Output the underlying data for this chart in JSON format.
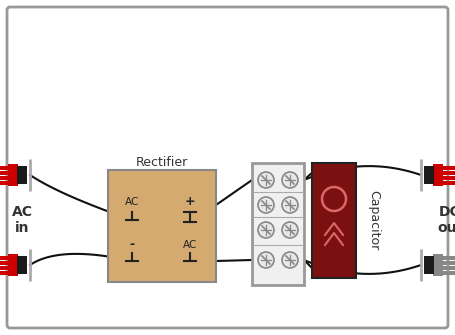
{
  "border_color": "#999999",
  "rectifier_color": "#d4aa70",
  "rectifier_border": "#888888",
  "terminal_red": "#cc0000",
  "terminal_dark": "#1a1a1a",
  "terminal_gray": "#888888",
  "capacitor_color": "#7a1010",
  "capacitor_border": "#222222",
  "terminal_block_bg": "#f0f0f0",
  "terminal_block_border": "#999999",
  "wire_color": "#111111",
  "label_ac_in": "AC\nin",
  "label_dc_out": "DC\nout",
  "label_rectifier": "Rectifier",
  "label_capacitor": "Capacitor",
  "figw": 4.55,
  "figh": 3.35,
  "dpi": 100
}
